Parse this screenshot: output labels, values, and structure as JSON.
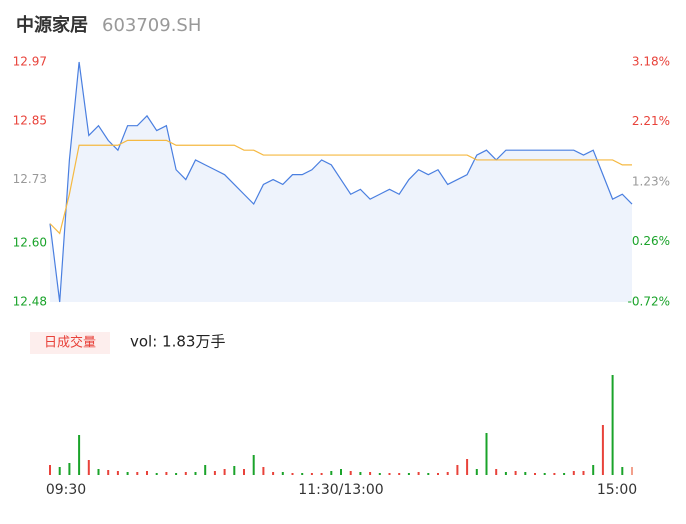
{
  "header": {
    "title": "中源家居",
    "code": "603709.SH"
  },
  "volume_label": "日成交量",
  "volume_text": "vol: 1.83万手",
  "chart_data": [
    {
      "type": "line",
      "x": [
        0,
        4,
        8,
        12,
        16,
        20,
        24,
        28,
        32,
        36,
        40,
        44,
        48,
        52,
        56,
        60,
        64,
        68,
        72,
        76,
        80,
        84,
        88,
        92,
        96,
        100,
        104,
        108,
        112,
        116,
        120,
        124,
        128,
        132,
        136,
        140,
        144,
        148,
        152,
        156,
        160,
        164,
        168,
        172,
        176,
        180,
        184,
        188,
        192,
        196,
        200,
        204,
        208,
        212,
        216,
        220,
        224,
        228,
        232,
        236,
        240
      ],
      "xlim": [
        0,
        240
      ],
      "xticks": [
        {
          "value": 0,
          "label": "09:30"
        },
        {
          "value": 120,
          "label": "11:30/13:00"
        },
        {
          "value": 240,
          "label": "15:00"
        }
      ],
      "ylim": [
        12.48,
        12.97
      ],
      "yticks": [
        12.48,
        {
          "value": 12.6,
          "label": "12.60"
        },
        12.73,
        12.85,
        12.97
      ],
      "ytick_colors": [
        "#1aa32a",
        "#1aa32a",
        "#999999",
        "#e8423a",
        "#e8423a"
      ],
      "y2lim": [
        -0.72,
        3.18
      ],
      "y2ticks": [
        {
          "value": -0.72,
          "label": "-0.72%"
        },
        {
          "value": 0.26,
          "label": "0.26%"
        },
        {
          "value": 1.23,
          "label": "1.23%"
        },
        {
          "value": 2.21,
          "label": "2.21%"
        },
        {
          "value": 3.18,
          "label": "3.18%"
        }
      ],
      "area_color": "#eef3fc",
      "series": [
        {
          "name": "price",
          "color": "#4a7fe0",
          "values": [
            12.64,
            12.48,
            12.77,
            12.97,
            12.82,
            12.84,
            12.81,
            12.79,
            12.84,
            12.84,
            12.86,
            12.83,
            12.84,
            12.75,
            12.73,
            12.77,
            12.76,
            12.75,
            12.74,
            12.72,
            12.7,
            12.68,
            12.72,
            12.73,
            12.72,
            12.74,
            12.74,
            12.75,
            12.77,
            12.76,
            12.73,
            12.7,
            12.71,
            12.69,
            12.7,
            12.71,
            12.7,
            12.73,
            12.75,
            12.74,
            12.75,
            12.72,
            12.73,
            12.74,
            12.78,
            12.79,
            12.77,
            12.79,
            12.79,
            12.79,
            12.79,
            12.79,
            12.79,
            12.79,
            12.79,
            12.78,
            12.79,
            12.74,
            12.69,
            12.7,
            12.68
          ]
        },
        {
          "name": "average",
          "color": "#f5b942",
          "values": [
            12.64,
            12.62,
            12.7,
            12.8,
            12.8,
            12.8,
            12.8,
            12.8,
            12.81,
            12.81,
            12.81,
            12.81,
            12.81,
            12.8,
            12.8,
            12.8,
            12.8,
            12.8,
            12.8,
            12.8,
            12.79,
            12.79,
            12.78,
            12.78,
            12.78,
            12.78,
            12.78,
            12.78,
            12.78,
            12.78,
            12.78,
            12.78,
            12.78,
            12.78,
            12.78,
            12.78,
            12.78,
            12.78,
            12.78,
            12.78,
            12.78,
            12.78,
            12.78,
            12.78,
            12.77,
            12.77,
            12.77,
            12.77,
            12.77,
            12.77,
            12.77,
            12.77,
            12.77,
            12.77,
            12.77,
            12.77,
            12.77,
            12.77,
            12.77,
            12.76,
            12.76
          ]
        }
      ]
    },
    {
      "type": "bar",
      "ylim": [
        0,
        100
      ],
      "values": [
        10,
        8,
        12,
        40,
        15,
        6,
        5,
        4,
        3,
        3,
        4,
        2,
        3,
        2,
        3,
        3,
        10,
        4,
        6,
        9,
        6,
        20,
        8,
        3,
        3,
        2,
        2,
        2,
        2,
        4,
        6,
        4,
        3,
        3,
        2,
        2,
        2,
        2,
        3,
        2,
        2,
        3,
        10,
        16,
        6,
        42,
        6,
        3,
        4,
        3,
        2,
        2,
        2,
        2,
        4,
        4,
        10,
        50,
        100,
        8,
        8
      ],
      "colors": [
        "#e8423a",
        "#1aa32a",
        "#1aa32a",
        "#1aa32a",
        "#e8423a",
        "#1aa32a",
        "#e8423a",
        "#e8423a",
        "#1aa32a",
        "#e8423a",
        "#e8423a",
        "#1aa32a",
        "#e8423a",
        "#1aa32a",
        "#e8423a",
        "#1aa32a",
        "#1aa32a",
        "#e8423a",
        "#e8423a",
        "#1aa32a",
        "#e8423a",
        "#1aa32a",
        "#e8423a",
        "#e8423a",
        "#1aa32a",
        "#e8423a",
        "#1aa32a",
        "#e8423a",
        "#e8423a",
        "#1aa32a",
        "#1aa32a",
        "#e8423a",
        "#1aa32a",
        "#e8423a",
        "#1aa32a",
        "#e8423a",
        "#e8423a",
        "#1aa32a",
        "#e8423a",
        "#1aa32a",
        "#e8423a",
        "#e8423a",
        "#e8423a",
        "#e8423a",
        "#1aa32a",
        "#1aa32a",
        "#e8423a",
        "#1aa32a",
        "#e8423a",
        "#1aa32a",
        "#e8423a",
        "#1aa32a",
        "#e8423a",
        "#1aa32a",
        "#e8423a",
        "#e8423a",
        "#1aa32a",
        "#e8423a",
        "#1aa32a",
        "#1aa32a",
        "#f2a08c"
      ]
    }
  ]
}
